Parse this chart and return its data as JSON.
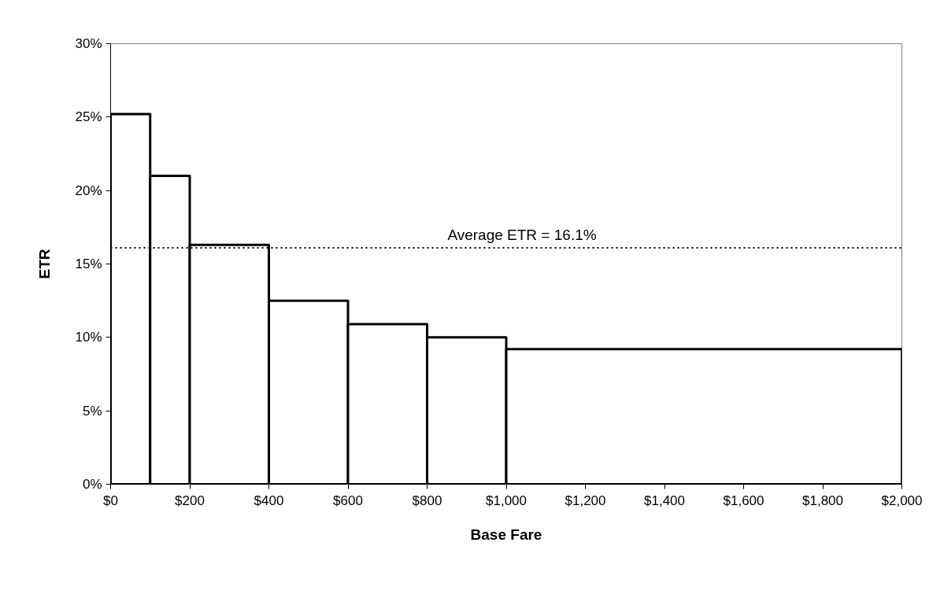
{
  "chart_data": {
    "type": "histogram",
    "xlabel": "Base Fare",
    "ylabel": "ETR",
    "bins": [
      0,
      100,
      200,
      400,
      600,
      800,
      1000,
      2000
    ],
    "values": [
      25.2,
      21.0,
      16.3,
      12.5,
      10.9,
      10.0,
      9.2
    ],
    "color": "#ffffff",
    "xlim": [
      0,
      2000
    ],
    "xticks": [
      {
        "value": 0,
        "label": "$0"
      },
      {
        "value": 200,
        "label": "$200"
      },
      {
        "value": 400,
        "label": "$400"
      },
      {
        "value": 600,
        "label": "$600"
      },
      {
        "value": 800,
        "label": "$800"
      },
      {
        "value": 1000,
        "label": "$1,000"
      },
      {
        "value": 1200,
        "label": "$1,200"
      },
      {
        "value": 1400,
        "label": "$1,400"
      },
      {
        "value": 1600,
        "label": "$1,600"
      },
      {
        "value": 1800,
        "label": "$1,800"
      },
      {
        "value": 2000,
        "label": "$2,000"
      }
    ],
    "ylim": [
      0,
      30
    ],
    "yticks": [
      {
        "value": 0,
        "label": "0%"
      },
      {
        "value": 5,
        "label": "5%"
      },
      {
        "value": 10,
        "label": "10%"
      },
      {
        "value": 15,
        "label": "15%"
      },
      {
        "value": 20,
        "label": "20%"
      },
      {
        "value": 25,
        "label": "25%"
      },
      {
        "value": 30,
        "label": "30%"
      }
    ],
    "ref_lines": [
      {
        "axis": "y",
        "value": 16.1,
        "label": "Average ETR = 16.1%",
        "color": "#000000",
        "line_style": "dotted"
      }
    ],
    "grid": false
  }
}
